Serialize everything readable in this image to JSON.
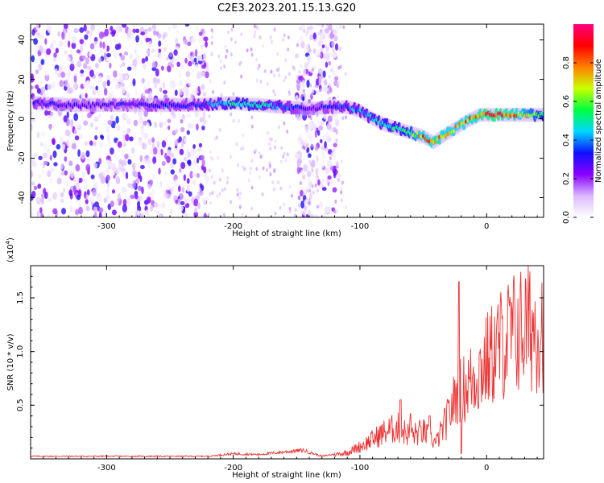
{
  "figure": {
    "title": "C2E3.2023.201.15.13.G20"
  },
  "chart_data": [
    {
      "type": "heatmap",
      "xlabel": "Height of straight line (km)",
      "ylabel": "Frequency (Hz)",
      "xlim": [
        -360,
        45
      ],
      "ylim": [
        -50,
        48
      ],
      "xticks": [
        -300,
        -200,
        -100,
        0
      ],
      "yticks": [
        -40,
        -20,
        0,
        20,
        40
      ],
      "colorbar": {
        "label": "Normalized spectral amplitude",
        "range": [
          0,
          1
        ],
        "ticks": [
          "0.0",
          "0.2",
          "0.4",
          "0.6",
          "0.8"
        ],
        "colormap": [
          "#ffffff",
          "#d9b8ff",
          "#8a00ff",
          "#1010ff",
          "#00d8ff",
          "#00ff40",
          "#c8ff00",
          "#ff8000",
          "#ff0000",
          "#ff0080"
        ]
      },
      "ridge": {
        "x": [
          -355,
          -330,
          -300,
          -260,
          -230,
          -200,
          -180,
          -160,
          -140,
          -125,
          -110,
          -100,
          -90,
          -80,
          -70,
          -60,
          -50,
          -42,
          -35,
          -25,
          -15,
          -5,
          0,
          10,
          20,
          30,
          45
        ],
        "freq": [
          8,
          7,
          7,
          7,
          7,
          8,
          7,
          6,
          5,
          6,
          6,
          4,
          0,
          -3,
          -5,
          -7,
          -9,
          -12,
          -9,
          -5,
          -1,
          2,
          2,
          2,
          2,
          2,
          2
        ],
        "amplitude": [
          0.35,
          0.3,
          0.3,
          0.35,
          0.35,
          0.55,
          0.55,
          0.4,
          0.3,
          0.35,
          0.4,
          0.45,
          0.5,
          0.55,
          0.55,
          0.65,
          0.85,
          0.9,
          0.85,
          0.8,
          0.85,
          0.9,
          0.95,
          0.95,
          0.9,
          0.75,
          0.6
        ]
      },
      "noise_bands": [
        [
          -360,
          -220
        ],
        [
          -150,
          -118
        ]
      ]
    },
    {
      "type": "line",
      "xlabel": "Height of straight line (km)",
      "ylabel": "SNR (10 * v/v)",
      "scale_note": "(x10",
      "scale_exp": "4",
      "scale_close": ")",
      "xlim": [
        -360,
        45
      ],
      "ylim": [
        0,
        1.8
      ],
      "xticks": [
        -300,
        -200,
        -100,
        0
      ],
      "yticks": [
        "0.5",
        "1.0",
        "1.5"
      ],
      "series": [
        {
          "color": "#ee3333",
          "envelope_x": [
            -360,
            -220,
            -200,
            -180,
            -160,
            -145,
            -130,
            -110,
            -95,
            -80,
            -70,
            -60,
            -50,
            -40,
            -30,
            -22,
            -18,
            -10,
            0,
            10,
            20,
            30,
            45
          ],
          "envelope_y": [
            0.03,
            0.03,
            0.06,
            0.05,
            0.08,
            0.1,
            0.03,
            0.08,
            0.2,
            0.35,
            0.4,
            0.3,
            0.35,
            0.2,
            0.55,
            0.9,
            0.9,
            1.05,
            1.25,
            1.45,
            1.6,
            1.68,
            1.74
          ],
          "spikes_x": [
            -68,
            -60,
            -45,
            -22,
            -20
          ],
          "spikes_y": [
            0.55,
            0.42,
            0.4,
            1.65,
            0.05
          ]
        }
      ]
    }
  ]
}
